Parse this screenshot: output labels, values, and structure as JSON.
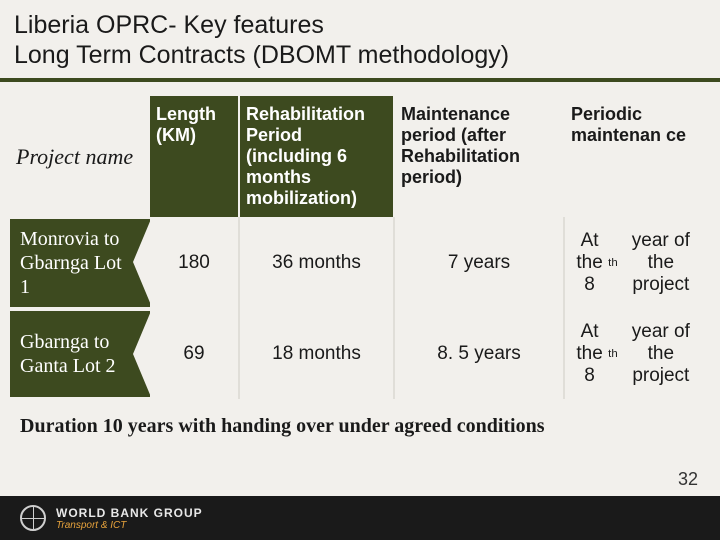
{
  "title": {
    "line1": "Liberia  OPRC- Key features",
    "line2": "Long Term Contracts (DBOMT methodology)"
  },
  "table": {
    "headers": {
      "project": "Project name",
      "length": "Length (KM)",
      "rehab": "Rehabilitation Period (including 6 months mobilization)",
      "maint": "Maintenance period (after Rehabilitation period)",
      "periodic": "Periodic maintenan ce"
    },
    "rows": [
      {
        "name": "Monrovia to Gbarnga Lot 1",
        "length": "180",
        "rehab": "36 months",
        "maint": "7 years",
        "periodic_html": "At the 8<span class='sup'>th</span> year of the project"
      },
      {
        "name": "Gbarnga to Ganta Lot 2",
        "length": "69",
        "rehab": "18 months",
        "maint": "8. 5 years",
        "periodic_html": "At the 8<span class='sup'>th</span> year of the project"
      }
    ]
  },
  "duration_note": "Duration 10 years with handing over under agreed conditions",
  "footer": {
    "org": "WORLD BANK GROUP",
    "dept": "Transport & ICT"
  },
  "page_number": "32",
  "colors": {
    "olive": "#3d4a1f",
    "bg": "#f2f0ec",
    "footer_bg": "#1a1a1a",
    "accent": "#e6a23c"
  }
}
